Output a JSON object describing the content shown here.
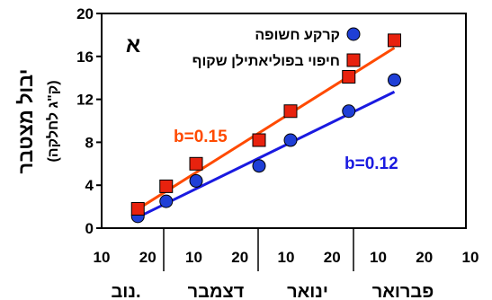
{
  "chart_data": {
    "type": "scatter",
    "panel_label": "א",
    "ylabel": "יבול מצטבר",
    "ylabel_unit": "(ק\"ג לחלקה)",
    "ylim": [
      0,
      20
    ],
    "yticks": [
      0,
      4,
      8,
      12,
      16,
      20
    ],
    "xlim": [
      0,
      10
    ],
    "x_tick_labels": [
      "10",
      "20",
      "10",
      "20",
      "10",
      "20",
      "10",
      "20",
      "10"
    ],
    "month_labels": [
      "נוב.",
      "דצמבר",
      "ינואר",
      "פברואר"
    ],
    "legend_position": "top-right",
    "series": [
      {
        "name": "קרקע חשופה",
        "marker": "circle",
        "color": "#1f3fd6",
        "x": [
          0.15,
          1.05,
          2.0,
          4.0,
          5.0,
          6.85,
          8.3
        ],
        "y": [
          1.1,
          2.5,
          4.4,
          5.8,
          8.2,
          10.9,
          13.8
        ]
      },
      {
        "name": "חיפוי בפוליאתילן שקוף",
        "marker": "square",
        "color": "#e8220e",
        "x": [
          0.15,
          1.05,
          2.0,
          4.0,
          5.0,
          6.85,
          8.3
        ],
        "y": [
          1.8,
          3.9,
          6.0,
          8.2,
          10.9,
          14.1,
          17.5
        ]
      }
    ],
    "trendlines": [
      {
        "label": "b=0.15",
        "color": "#ff4a00",
        "x": [
          0.0,
          8.3
        ],
        "y": [
          1.5,
          16.8
        ]
      },
      {
        "label": "b=0.12",
        "color": "#1a1ae0",
        "x": [
          0.0,
          8.3
        ],
        "y": [
          0.8,
          12.7
        ]
      }
    ]
  }
}
